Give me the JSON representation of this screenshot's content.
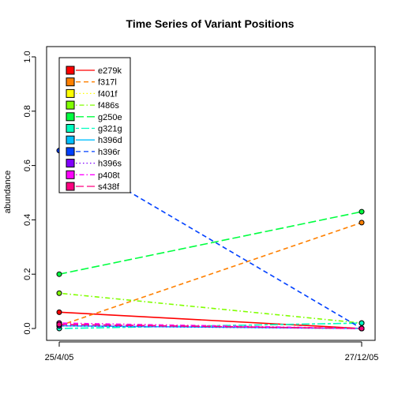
{
  "chart_data": {
    "type": "line",
    "title": "Time Series of Variant Positions",
    "xlabel": "",
    "ylabel": "abundance",
    "x": [
      "25/4/05",
      "27/12/05"
    ],
    "ylim": [
      0,
      1
    ],
    "yticks": [
      "0.0",
      "0.2",
      "0.4",
      "0.6",
      "0.8",
      "1.0"
    ],
    "legend_position": "top-left",
    "grid": false,
    "series": [
      {
        "name": "e279k",
        "values": [
          0.06,
          0.0
        ],
        "color": "#FF0000",
        "dash": "solid"
      },
      {
        "name": "f317l",
        "values": [
          0.01,
          0.39
        ],
        "color": "#FF8000",
        "dash": "dashed"
      },
      {
        "name": "f401f",
        "values": [
          0.02,
          0.0
        ],
        "color": "#FFFF00",
        "dash": "dotted"
      },
      {
        "name": "f486s",
        "values": [
          0.13,
          0.02
        ],
        "color": "#80FF00",
        "dash": "dotdash"
      },
      {
        "name": "g250e",
        "values": [
          0.2,
          0.43
        ],
        "color": "#00FF40",
        "dash": "longdash"
      },
      {
        "name": "g321g",
        "values": [
          0.0,
          0.02
        ],
        "color": "#00FFBF",
        "dash": "twodash"
      },
      {
        "name": "h396d",
        "values": [
          0.01,
          0.0
        ],
        "color": "#00BFFF",
        "dash": "solid"
      },
      {
        "name": "h396r",
        "values": [
          0.655,
          0.0
        ],
        "color": "#0040FF",
        "dash": "dashed"
      },
      {
        "name": "h396s",
        "values": [
          0.01,
          0.0
        ],
        "color": "#8000FF",
        "dash": "dotted"
      },
      {
        "name": "p408t",
        "values": [
          0.02,
          0.0
        ],
        "color": "#FF00FF",
        "dash": "dotdash"
      },
      {
        "name": "s438f",
        "values": [
          0.015,
          0.0
        ],
        "color": "#FF0080",
        "dash": "longdash"
      }
    ]
  }
}
